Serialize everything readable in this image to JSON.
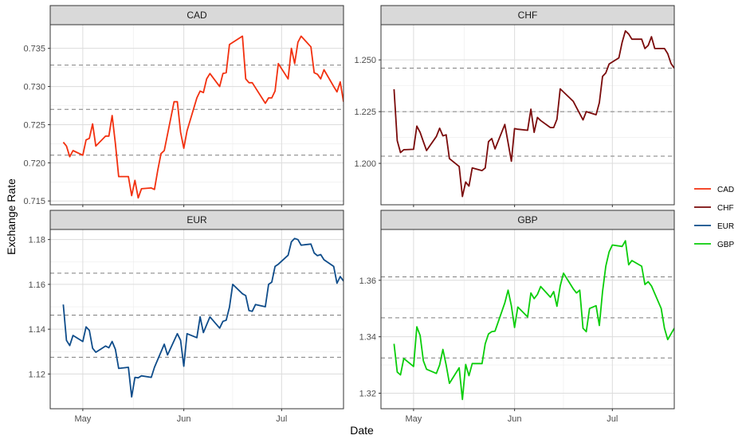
{
  "chart_data": {
    "type": "line",
    "xlabel": "Date",
    "ylabel": "Exchange Rate",
    "x_tick_labels": [
      "May",
      "Jun",
      "Jul"
    ],
    "x_domain": [
      "2020-04-21",
      "2020-07-20"
    ],
    "x_tick_dates": [
      "2020-05-01",
      "2020-06-01",
      "2020-07-01"
    ],
    "legend": {
      "position": "right",
      "entries": [
        {
          "label": "CAD",
          "color": "#F2300F"
        },
        {
          "label": "CHF",
          "color": "#7A0A0A"
        },
        {
          "label": "EUR",
          "color": "#0E4C8A"
        },
        {
          "label": "GBP",
          "color": "#0ACD0A"
        }
      ]
    },
    "grid": true,
    "panels": [
      {
        "name": "CAD",
        "color": "#F2300F",
        "ylim": [
          0.7145,
          0.7381
        ],
        "yticks": [
          0.715,
          0.72,
          0.725,
          0.73,
          0.735
        ],
        "ytick_labels": [
          "0.715",
          "0.720",
          "0.725",
          "0.730",
          "0.735"
        ],
        "reference_lines": [
          0.7328,
          0.727,
          0.721
        ],
        "points": [
          [
            "2020-04-25",
            0.7227
          ],
          [
            "2020-04-26",
            0.7222
          ],
          [
            "2020-04-27",
            0.7208
          ],
          [
            "2020-04-28",
            0.7216
          ],
          [
            "2020-05-01",
            0.721
          ],
          [
            "2020-05-02",
            0.723
          ],
          [
            "2020-05-03",
            0.7232
          ],
          [
            "2020-05-04",
            0.7251
          ],
          [
            "2020-05-05",
            0.7222
          ],
          [
            "2020-05-08",
            0.7235
          ],
          [
            "2020-05-09",
            0.7235
          ],
          [
            "2020-05-10",
            0.7262
          ],
          [
            "2020-05-11",
            0.7225
          ],
          [
            "2020-05-12",
            0.7182
          ],
          [
            "2020-05-15",
            0.7182
          ],
          [
            "2020-05-16",
            0.7157
          ],
          [
            "2020-05-17",
            0.7177
          ],
          [
            "2020-05-18",
            0.7154
          ],
          [
            "2020-05-19",
            0.7166
          ],
          [
            "2020-05-22",
            0.7167
          ],
          [
            "2020-05-23",
            0.7165
          ],
          [
            "2020-05-24",
            0.719
          ],
          [
            "2020-05-25",
            0.7212
          ],
          [
            "2020-05-26",
            0.7216
          ],
          [
            "2020-05-29",
            0.728
          ],
          [
            "2020-05-30",
            0.728
          ],
          [
            "2020-05-31",
            0.724
          ],
          [
            "2020-06-01",
            0.7219
          ],
          [
            "2020-06-02",
            0.7242
          ],
          [
            "2020-06-05",
            0.7285
          ],
          [
            "2020-06-06",
            0.7294
          ],
          [
            "2020-06-07",
            0.7292
          ],
          [
            "2020-06-08",
            0.731
          ],
          [
            "2020-06-09",
            0.7317
          ],
          [
            "2020-06-12",
            0.73
          ],
          [
            "2020-06-13",
            0.7317
          ],
          [
            "2020-06-14",
            0.7318
          ],
          [
            "2020-06-15",
            0.7355
          ],
          [
            "2020-06-19",
            0.7366
          ],
          [
            "2020-06-20",
            0.731
          ],
          [
            "2020-06-21",
            0.7305
          ],
          [
            "2020-06-22",
            0.7305
          ],
          [
            "2020-06-26",
            0.7278
          ],
          [
            "2020-06-27",
            0.7285
          ],
          [
            "2020-06-28",
            0.7285
          ],
          [
            "2020-06-29",
            0.7294
          ],
          [
            "2020-06-30",
            0.733
          ],
          [
            "2020-07-03",
            0.731
          ],
          [
            "2020-07-04",
            0.735
          ],
          [
            "2020-07-05",
            0.733
          ],
          [
            "2020-07-06",
            0.7358
          ],
          [
            "2020-07-07",
            0.7366
          ],
          [
            "2020-07-10",
            0.7352
          ],
          [
            "2020-07-11",
            0.7318
          ],
          [
            "2020-07-12",
            0.7316
          ],
          [
            "2020-07-13",
            0.731
          ],
          [
            "2020-07-14",
            0.7322
          ],
          [
            "2020-07-17",
            0.73
          ],
          [
            "2020-07-18",
            0.7293
          ],
          [
            "2020-07-19",
            0.7306
          ],
          [
            "2020-07-20",
            0.728
          ]
        ]
      },
      {
        "name": "CHF",
        "color": "#7A0A0A",
        "ylim": [
          1.18,
          1.267
        ],
        "yticks": [
          1.2,
          1.225,
          1.25
        ],
        "ytick_labels": [
          "1.200",
          "1.225",
          "1.250"
        ],
        "reference_lines": [
          1.246,
          1.225,
          1.2035
        ],
        "points": [
          [
            "2020-04-25",
            1.2358
          ],
          [
            "2020-04-26",
            1.211
          ],
          [
            "2020-04-27",
            1.2052
          ],
          [
            "2020-04-28",
            1.2066
          ],
          [
            "2020-05-01",
            1.2068
          ],
          [
            "2020-05-02",
            1.218
          ],
          [
            "2020-05-03",
            1.215
          ],
          [
            "2020-05-04",
            1.2105
          ],
          [
            "2020-05-05",
            1.2062
          ],
          [
            "2020-05-08",
            1.213
          ],
          [
            "2020-05-09",
            1.217
          ],
          [
            "2020-05-10",
            1.2133
          ],
          [
            "2020-05-11",
            1.2138
          ],
          [
            "2020-05-12",
            1.2023
          ],
          [
            "2020-05-15",
            1.1985
          ],
          [
            "2020-05-16",
            1.184
          ],
          [
            "2020-05-17",
            1.191
          ],
          [
            "2020-05-18",
            1.189
          ],
          [
            "2020-05-19",
            1.1978
          ],
          [
            "2020-05-22",
            1.1965
          ],
          [
            "2020-05-23",
            1.1978
          ],
          [
            "2020-05-24",
            1.2105
          ],
          [
            "2020-05-25",
            1.212
          ],
          [
            "2020-05-26",
            1.207
          ],
          [
            "2020-05-29",
            1.2188
          ],
          [
            "2020-05-30",
            1.21
          ],
          [
            "2020-05-31",
            1.201
          ],
          [
            "2020-06-01",
            1.2168
          ],
          [
            "2020-06-02",
            1.2165
          ],
          [
            "2020-06-05",
            1.216
          ],
          [
            "2020-06-06",
            1.2262
          ],
          [
            "2020-06-07",
            1.215
          ],
          [
            "2020-06-08",
            1.2222
          ],
          [
            "2020-06-09",
            1.2207
          ],
          [
            "2020-06-12",
            1.2173
          ],
          [
            "2020-06-13",
            1.2173
          ],
          [
            "2020-06-14",
            1.2213
          ],
          [
            "2020-06-15",
            1.236
          ],
          [
            "2020-06-19",
            1.23
          ],
          [
            "2020-06-20",
            1.227
          ],
          [
            "2020-06-21",
            1.224
          ],
          [
            "2020-06-22",
            1.221
          ],
          [
            "2020-06-23",
            1.225
          ],
          [
            "2020-06-26",
            1.2235
          ],
          [
            "2020-06-27",
            1.2293
          ],
          [
            "2020-06-28",
            1.242
          ],
          [
            "2020-06-29",
            1.2437
          ],
          [
            "2020-06-30",
            1.248
          ],
          [
            "2020-07-03",
            1.251
          ],
          [
            "2020-07-04",
            1.2585
          ],
          [
            "2020-07-05",
            1.264
          ],
          [
            "2020-07-06",
            1.2625
          ],
          [
            "2020-07-07",
            1.26
          ],
          [
            "2020-07-10",
            1.26
          ],
          [
            "2020-07-11",
            1.2555
          ],
          [
            "2020-07-12",
            1.257
          ],
          [
            "2020-07-13",
            1.2612
          ],
          [
            "2020-07-14",
            1.2555
          ],
          [
            "2020-07-17",
            1.2555
          ],
          [
            "2020-07-18",
            1.253
          ],
          [
            "2020-07-19",
            1.2483
          ],
          [
            "2020-07-20",
            1.246
          ]
        ]
      },
      {
        "name": "EUR",
        "color": "#0E4C8A",
        "ylim": [
          1.1045,
          1.1845
        ],
        "yticks": [
          1.12,
          1.14,
          1.16,
          1.18
        ],
        "ytick_labels": [
          "1.12",
          "1.14",
          "1.16",
          "1.18"
        ],
        "reference_lines": [
          1.165,
          1.1463,
          1.1275
        ],
        "points": [
          [
            "2020-04-25",
            1.151
          ],
          [
            "2020-04-26",
            1.135
          ],
          [
            "2020-04-27",
            1.1327
          ],
          [
            "2020-04-28",
            1.1372
          ],
          [
            "2020-05-01",
            1.1345
          ],
          [
            "2020-05-02",
            1.141
          ],
          [
            "2020-05-03",
            1.1395
          ],
          [
            "2020-05-04",
            1.1315
          ],
          [
            "2020-05-05",
            1.1297
          ],
          [
            "2020-05-08",
            1.1325
          ],
          [
            "2020-05-09",
            1.1317
          ],
          [
            "2020-05-10",
            1.1345
          ],
          [
            "2020-05-11",
            1.131
          ],
          [
            "2020-05-12",
            1.1225
          ],
          [
            "2020-05-15",
            1.123
          ],
          [
            "2020-05-16",
            1.1098
          ],
          [
            "2020-05-17",
            1.1185
          ],
          [
            "2020-05-18",
            1.1183
          ],
          [
            "2020-05-19",
            1.1192
          ],
          [
            "2020-05-22",
            1.1185
          ],
          [
            "2020-05-23",
            1.123
          ],
          [
            "2020-05-26",
            1.1333
          ],
          [
            "2020-05-27",
            1.1285
          ],
          [
            "2020-05-30",
            1.138
          ],
          [
            "2020-05-31",
            1.135
          ],
          [
            "2020-06-01",
            1.1235
          ],
          [
            "2020-06-02",
            1.138
          ],
          [
            "2020-06-05",
            1.1362
          ],
          [
            "2020-06-06",
            1.1455
          ],
          [
            "2020-06-07",
            1.1385
          ],
          [
            "2020-06-09",
            1.1455
          ],
          [
            "2020-06-12",
            1.1405
          ],
          [
            "2020-06-13",
            1.1435
          ],
          [
            "2020-06-14",
            1.144
          ],
          [
            "2020-06-15",
            1.1498
          ],
          [
            "2020-06-16",
            1.16
          ],
          [
            "2020-06-19",
            1.1558
          ],
          [
            "2020-06-20",
            1.155
          ],
          [
            "2020-06-21",
            1.1483
          ],
          [
            "2020-06-22",
            1.148
          ],
          [
            "2020-06-23",
            1.151
          ],
          [
            "2020-06-26",
            1.15
          ],
          [
            "2020-06-27",
            1.16
          ],
          [
            "2020-06-28",
            1.161
          ],
          [
            "2020-06-29",
            1.168
          ],
          [
            "2020-06-30",
            1.169
          ],
          [
            "2020-07-03",
            1.173
          ],
          [
            "2020-07-04",
            1.179
          ],
          [
            "2020-07-05",
            1.1805
          ],
          [
            "2020-07-06",
            1.18
          ],
          [
            "2020-07-07",
            1.1775
          ],
          [
            "2020-07-10",
            1.178
          ],
          [
            "2020-07-11",
            1.174
          ],
          [
            "2020-07-12",
            1.1728
          ],
          [
            "2020-07-13",
            1.1733
          ],
          [
            "2020-07-14",
            1.171
          ],
          [
            "2020-07-17",
            1.168
          ],
          [
            "2020-07-18",
            1.1605
          ],
          [
            "2020-07-19",
            1.1635
          ],
          [
            "2020-07-20",
            1.1615
          ]
        ]
      },
      {
        "name": "GBP",
        "color": "#0ACD0A",
        "ylim": [
          1.3145,
          1.378
        ],
        "yticks": [
          1.32,
          1.34,
          1.36
        ],
        "ytick_labels": [
          "1.32",
          "1.34",
          "1.36"
        ],
        "reference_lines": [
          1.3612,
          1.3467,
          1.3325
        ],
        "points": [
          [
            "2020-04-25",
            1.3375
          ],
          [
            "2020-04-26",
            1.3275
          ],
          [
            "2020-04-27",
            1.3265
          ],
          [
            "2020-04-28",
            1.3323
          ],
          [
            "2020-05-01",
            1.3295
          ],
          [
            "2020-05-02",
            1.3435
          ],
          [
            "2020-05-03",
            1.3405
          ],
          [
            "2020-05-04",
            1.3315
          ],
          [
            "2020-05-05",
            1.3285
          ],
          [
            "2020-05-08",
            1.327
          ],
          [
            "2020-05-09",
            1.33
          ],
          [
            "2020-05-10",
            1.3355
          ],
          [
            "2020-05-11",
            1.33
          ],
          [
            "2020-05-12",
            1.3235
          ],
          [
            "2020-05-15",
            1.329
          ],
          [
            "2020-05-16",
            1.3178
          ],
          [
            "2020-05-17",
            1.3302
          ],
          [
            "2020-05-18",
            1.3262
          ],
          [
            "2020-05-19",
            1.3305
          ],
          [
            "2020-05-22",
            1.3305
          ],
          [
            "2020-05-23",
            1.3375
          ],
          [
            "2020-05-24",
            1.341
          ],
          [
            "2020-05-25",
            1.3418
          ],
          [
            "2020-05-26",
            1.342
          ],
          [
            "2020-05-29",
            1.352
          ],
          [
            "2020-05-30",
            1.3565
          ],
          [
            "2020-05-31",
            1.351
          ],
          [
            "2020-06-01",
            1.3433
          ],
          [
            "2020-06-02",
            1.3505
          ],
          [
            "2020-06-05",
            1.347
          ],
          [
            "2020-06-06",
            1.3555
          ],
          [
            "2020-06-07",
            1.3535
          ],
          [
            "2020-06-08",
            1.355
          ],
          [
            "2020-06-09",
            1.3578
          ],
          [
            "2020-06-12",
            1.354
          ],
          [
            "2020-06-13",
            1.356
          ],
          [
            "2020-06-14",
            1.3508
          ],
          [
            "2020-06-15",
            1.358
          ],
          [
            "2020-06-16",
            1.3625
          ],
          [
            "2020-06-19",
            1.357
          ],
          [
            "2020-06-20",
            1.3555
          ],
          [
            "2020-06-21",
            1.3565
          ],
          [
            "2020-06-22",
            1.343
          ],
          [
            "2020-06-23",
            1.3418
          ],
          [
            "2020-06-24",
            1.35
          ],
          [
            "2020-06-26",
            1.351
          ],
          [
            "2020-06-27",
            1.344
          ],
          [
            "2020-06-28",
            1.356
          ],
          [
            "2020-06-29",
            1.365
          ],
          [
            "2020-06-30",
            1.37
          ],
          [
            "2020-07-01",
            1.3725
          ],
          [
            "2020-07-04",
            1.372
          ],
          [
            "2020-07-05",
            1.374
          ],
          [
            "2020-07-06",
            1.3655
          ],
          [
            "2020-07-07",
            1.367
          ],
          [
            "2020-07-10",
            1.365
          ],
          [
            "2020-07-11",
            1.3585
          ],
          [
            "2020-07-12",
            1.3595
          ],
          [
            "2020-07-13",
            1.358
          ],
          [
            "2020-07-16",
            1.35
          ],
          [
            "2020-07-17",
            1.343
          ],
          [
            "2020-07-18",
            1.339
          ],
          [
            "2020-07-20",
            1.343
          ]
        ]
      }
    ]
  }
}
